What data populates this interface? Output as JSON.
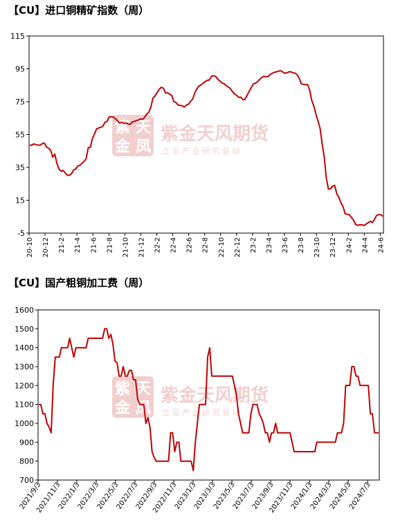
{
  "chart_data": [
    {
      "type": "line",
      "title": "【CU】进口铜精矿指数（周）",
      "ylim": [
        -5,
        115
      ],
      "yticks": [
        -5,
        15,
        35,
        55,
        75,
        95,
        115
      ],
      "x_tick_labels": [
        "20-10",
        "20-12",
        "21-2",
        "21-4",
        "21-6",
        "21-8",
        "21-10",
        "21-12",
        "22-2",
        "22-4",
        "22-6",
        "22-8",
        "22-10",
        "22-12",
        "23-2",
        "23-4",
        "23-6",
        "23-8",
        "23-10",
        "23-12",
        "24-2",
        "24-4",
        "24-6"
      ],
      "line_color": "#c00000",
      "series": [
        {
          "values": [
            48.5,
            48.5,
            49.3,
            48.8,
            48.6,
            48.5,
            49.5,
            49.8,
            47.5,
            46.6,
            45.5,
            41.2,
            43.1,
            37.5,
            34.0,
            32.6,
            33.2,
            31.5,
            30.2,
            30.2,
            31.2,
            33.5,
            34.0,
            35.8,
            36.2,
            37.5,
            38.6,
            40.4,
            47.0,
            47.2,
            52.5,
            55.5,
            58.5,
            59.0,
            59.4,
            60.0,
            62.5,
            63.0,
            65.8,
            65.8,
            65.8,
            64.5,
            63.5,
            62.0,
            62.5,
            61.8,
            62.0,
            61.5,
            61.2,
            62.5,
            63.0,
            63.5,
            63.8,
            64.5,
            64.2,
            65.5,
            67.4,
            68.5,
            71.8,
            77.2,
            78.5,
            80.6,
            82.5,
            83.8,
            83.2,
            80.3,
            80.4,
            79.5,
            78.8,
            75.0,
            74.5,
            73.0,
            72.7,
            72.5,
            71.8,
            72.9,
            73.5,
            75.2,
            76.6,
            80.4,
            82.8,
            84.5,
            85.2,
            86.3,
            87.2,
            88.0,
            88.2,
            90.5,
            90.8,
            90.3,
            88.8,
            87.5,
            86.4,
            86.0,
            84.8,
            84.0,
            83.0,
            81.2,
            79.7,
            78.9,
            77.6,
            77.8,
            76.3,
            76.3,
            78.8,
            81.2,
            83.5,
            85.7,
            86.3,
            87.0,
            88.5,
            89.7,
            90.4,
            90.3,
            90.2,
            91.5,
            92.2,
            92.8,
            93.2,
            93.5,
            93.9,
            93.2,
            92.3,
            92.5,
            93.1,
            93.2,
            92.6,
            92.4,
            91.5,
            89.2,
            85.9,
            85.5,
            85.4,
            85.4,
            82.0,
            75.8,
            72.3,
            67.5,
            63.3,
            58.6,
            49.2,
            41.2,
            28.3,
            21.8,
            22.0,
            23.7,
            24.0,
            18.9,
            16.8,
            13.5,
            11.0,
            6.7,
            6.5,
            6.2,
            4.5,
            2.9,
            0.2,
            -0.2,
            0.0,
            0.1,
            -0.4,
            0.5,
            1.3,
            2.2,
            1.5,
            3.2,
            5.8,
            6.3,
            6.3,
            5.2
          ]
        }
      ]
    },
    {
      "type": "line",
      "title": "【CU】国产粗铜加工费（周）",
      "ylim": [
        700,
        1600
      ],
      "yticks": [
        700,
        800,
        900,
        1000,
        1100,
        1200,
        1300,
        1400,
        1500,
        1600
      ],
      "x_tick_labels": [
        "2021/9/3",
        "2021/11/3",
        "2022/1/3",
        "2022/3/3",
        "2022/5/3",
        "2022/7/3",
        "2022/9/3",
        "2022/11/3",
        "2023/1/3",
        "2023/3/3",
        "2023/5/3",
        "2023/7/3",
        "2023/9/3",
        "2023/11/3",
        "2024/1/3",
        "2024/3/3",
        "2024/5/3",
        "2024/7/3"
      ],
      "line_color": "#c00000",
      "series": [
        {
          "values": [
            1100,
            1100,
            1050,
            1050,
            1000,
            980,
            950,
            1200,
            1350,
            1350,
            1350,
            1400,
            1400,
            1400,
            1400,
            1450,
            1400,
            1350,
            1400,
            1400,
            1400,
            1400,
            1400,
            1400,
            1450,
            1450,
            1450,
            1450,
            1450,
            1450,
            1450,
            1450,
            1500,
            1500,
            1450,
            1470,
            1420,
            1330,
            1320,
            1250,
            1250,
            1300,
            1250,
            1250,
            1280,
            1280,
            1230,
            1230,
            1130,
            1100,
            1100,
            1100,
            1000,
            1030,
            980,
            850,
            820,
            800,
            800,
            800,
            800,
            800,
            800,
            800,
            950,
            950,
            850,
            900,
            900,
            800,
            800,
            800,
            800,
            800,
            800,
            750,
            900,
            1000,
            1100,
            1100,
            1100,
            1100,
            1350,
            1400,
            1250,
            1250,
            1250,
            1250,
            1250,
            1250,
            1250,
            1250,
            1250,
            1250,
            1250,
            1200,
            1150,
            1050,
            1000,
            950,
            950,
            950,
            950,
            1050,
            1100,
            1100,
            1100,
            1050,
            1030,
            1000,
            950,
            950,
            900,
            950,
            950,
            1000,
            950,
            950,
            950,
            950,
            950,
            950,
            950,
            900,
            850,
            850,
            850,
            850,
            850,
            850,
            850,
            850,
            850,
            850,
            850,
            900,
            900,
            900,
            900,
            900,
            900,
            900,
            900,
            900,
            900,
            950,
            950,
            950,
            1000,
            1200,
            1200,
            1200,
            1300,
            1300,
            1250,
            1250,
            1200,
            1200,
            1200,
            1200,
            1200,
            1050,
            1050,
            950,
            950,
            950
          ]
        }
      ]
    }
  ],
  "watermark": {
    "logo_chars": [
      "紫",
      "天",
      "金",
      "凤"
    ],
    "name": "紫金天风期货",
    "slogan": "立 足 产 业   研 究 驱 动",
    "color": "#e6a9a9"
  }
}
